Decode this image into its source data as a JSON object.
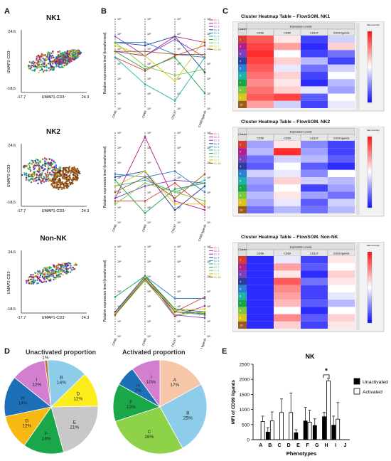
{
  "panels": {
    "A": "A",
    "B": "B",
    "C": "C",
    "D": "D",
    "E": "E"
  },
  "umap": {
    "x_label": "UMAP1-CD3⁻",
    "y_label": "UMAP2-CD3⁻",
    "x_min": "-17.7",
    "x_max": "24.3",
    "y_max": "24.6",
    "y_min": "-18.5",
    "plots": [
      {
        "title": "NK1"
      },
      {
        "title": "NK2"
      },
      {
        "title": "Non-NK"
      }
    ]
  },
  "parallel": {
    "ylabel": "Relative expression level (transformed)",
    "axes": [
      "CD56",
      "CD69",
      "CD137",
      "CD99 ligands"
    ],
    "ticks": [
      "10⁶",
      "10⁵",
      "10⁴",
      "10³",
      "10²",
      "10¹",
      "10⁰"
    ],
    "legend": [
      "Cl. 1",
      "Cl. 2",
      "Cl. 3",
      "Cl. 4",
      "Cl. 5",
      "Cl. 6",
      "Cl. 7",
      "Cl. 8",
      "Cl. 9",
      "Cl. 10"
    ]
  },
  "heatmaps": {
    "header_group": "Expression Levels",
    "cluster_label": "Cluster",
    "scale_label": "Max Intensity",
    "columns": [
      "CD56",
      "CD69",
      "CD137",
      "CD99 ligands"
    ],
    "row_labels": [
      "1",
      "2",
      "3",
      "4",
      "5",
      "6",
      "7",
      "8",
      "9",
      "10"
    ],
    "tables": [
      {
        "title": "Cluster Heatmap Table – FlowSOM. NK1",
        "values": [
          [
            0.85,
            0.55,
            0.1,
            0.4
          ],
          [
            0.9,
            0.7,
            0.05,
            0.6
          ],
          [
            0.95,
            0.5,
            0.1,
            0.2
          ],
          [
            0.9,
            0.6,
            0.35,
            0.1
          ],
          [
            0.85,
            0.45,
            0.2,
            0.4
          ],
          [
            0.8,
            0.6,
            0.1,
            0.5
          ],
          [
            0.75,
            0.55,
            0.05,
            0.35
          ],
          [
            0.8,
            0.6,
            0.45,
            0.3
          ],
          [
            0.85,
            0.9,
            0.15,
            0.5
          ],
          [
            0.7,
            0.4,
            0.1,
            0.45
          ]
        ]
      },
      {
        "title": "Cluster Heatmap Table – FlowSOM. NK2",
        "values": [
          [
            0.3,
            0.55,
            0.25,
            0.1
          ],
          [
            0.35,
            0.95,
            0.3,
            0.1
          ],
          [
            0.2,
            0.4,
            0.35,
            0.15
          ],
          [
            0.15,
            0.5,
            0.15,
            0.05
          ],
          [
            0.4,
            0.45,
            0.25,
            0.5
          ],
          [
            0.3,
            0.6,
            0.4,
            0.35
          ],
          [
            0.25,
            0.5,
            0.1,
            0.3
          ],
          [
            0.35,
            0.55,
            0.3,
            0.2
          ],
          [
            0.3,
            0.45,
            0.15,
            0.4
          ],
          [
            0.2,
            0.35,
            0.2,
            0.35
          ]
        ]
      },
      {
        "title": "Cluster Heatmap Table – FlowSOM. Non-NK",
        "values": [
          [
            0.05,
            0.45,
            0.1,
            0.55
          ],
          [
            0.05,
            0.7,
            0.15,
            0.5
          ],
          [
            0.05,
            0.55,
            0.05,
            0.6
          ],
          [
            0.05,
            0.85,
            0.2,
            0.55
          ],
          [
            0.05,
            0.75,
            0.1,
            0.5
          ],
          [
            0.05,
            0.7,
            0.1,
            0.45
          ],
          [
            0.05,
            0.65,
            0.15,
            0.35
          ],
          [
            0.05,
            0.5,
            0.05,
            0.5
          ],
          [
            0.05,
            0.75,
            0.15,
            0.6
          ],
          [
            0.05,
            0.6,
            0.1,
            0.55
          ]
        ]
      }
    ]
  },
  "pie_titles": {
    "left": "Unactivated proportion",
    "right": "Activated proportion"
  },
  "bar_title": "NK",
  "colors": {
    "A": "#f7c6a8",
    "B": "#8ecdea",
    "C": "#8ed249",
    "D": "#fbec1c",
    "E": "#c8c8c8",
    "F": "#1aa74a",
    "G": "#f9b913",
    "H": "#1d70b7",
    "I": "#d27fd0",
    "J": "#b97a3c"
  },
  "cluster_colors": [
    "#d63b2f",
    "#b0208d",
    "#7e3fbf",
    "#2b3d9c",
    "#2b7fd0",
    "#1fb2a8",
    "#17a34a",
    "#7cc63f",
    "#d8c51a",
    "#9c5a1e"
  ],
  "chart_data": [
    {
      "type": "pie",
      "title": "Unactivated proportion",
      "slices": [
        {
          "label": "A",
          "value": 0,
          "text": ""
        },
        {
          "label": "B",
          "value": 14,
          "text": "14%"
        },
        {
          "label": "D",
          "value": 12,
          "text": "12%"
        },
        {
          "label": "E",
          "value": 21,
          "text": "21%"
        },
        {
          "label": "F",
          "value": 14,
          "text": "14%"
        },
        {
          "label": "G",
          "value": 12,
          "text": "12%"
        },
        {
          "label": "H",
          "value": 14,
          "text": "14%"
        },
        {
          "label": "I",
          "value": 12,
          "text": "12%"
        },
        {
          "label": "J",
          "value": 1,
          "text": "1%"
        }
      ]
    },
    {
      "type": "pie",
      "title": "Activated proportion",
      "slices": [
        {
          "label": "A",
          "value": 17,
          "text": "17%"
        },
        {
          "label": "B",
          "value": 25,
          "text": "25%"
        },
        {
          "label": "C",
          "value": 28,
          "text": "28%"
        },
        {
          "label": "F",
          "value": 13,
          "text": "13%"
        },
        {
          "label": "H",
          "value": 7,
          "text": "7%"
        },
        {
          "label": "I",
          "value": 10,
          "text": "10%"
        }
      ]
    },
    {
      "type": "bar",
      "title": "NK",
      "xlabel": "Phenotypes",
      "ylabel": "MFI of CD99 ligands",
      "categories": [
        "A",
        "B",
        "C",
        "D",
        "E",
        "F",
        "G",
        "H",
        "I",
        "J"
      ],
      "ylim": [
        0,
        2500
      ],
      "yticks": [
        0,
        500,
        1000,
        1500,
        2000,
        2500
      ],
      "series": [
        {
          "name": "Unactivated",
          "values": [
            0,
            250,
            0,
            0,
            230,
            620,
            470,
            760,
            480,
            0
          ],
          "errors": [
            0,
            150,
            0,
            0,
            100,
            450,
            220,
            150,
            300,
            0
          ]
        },
        {
          "name": "Activated",
          "values": [
            600,
            620,
            900,
            900,
            0,
            580,
            0,
            1950,
            680,
            0
          ],
          "errors": [
            180,
            300,
            450,
            650,
            0,
            400,
            0,
            80,
            550,
            0
          ]
        }
      ],
      "annotation": "*"
    }
  ]
}
